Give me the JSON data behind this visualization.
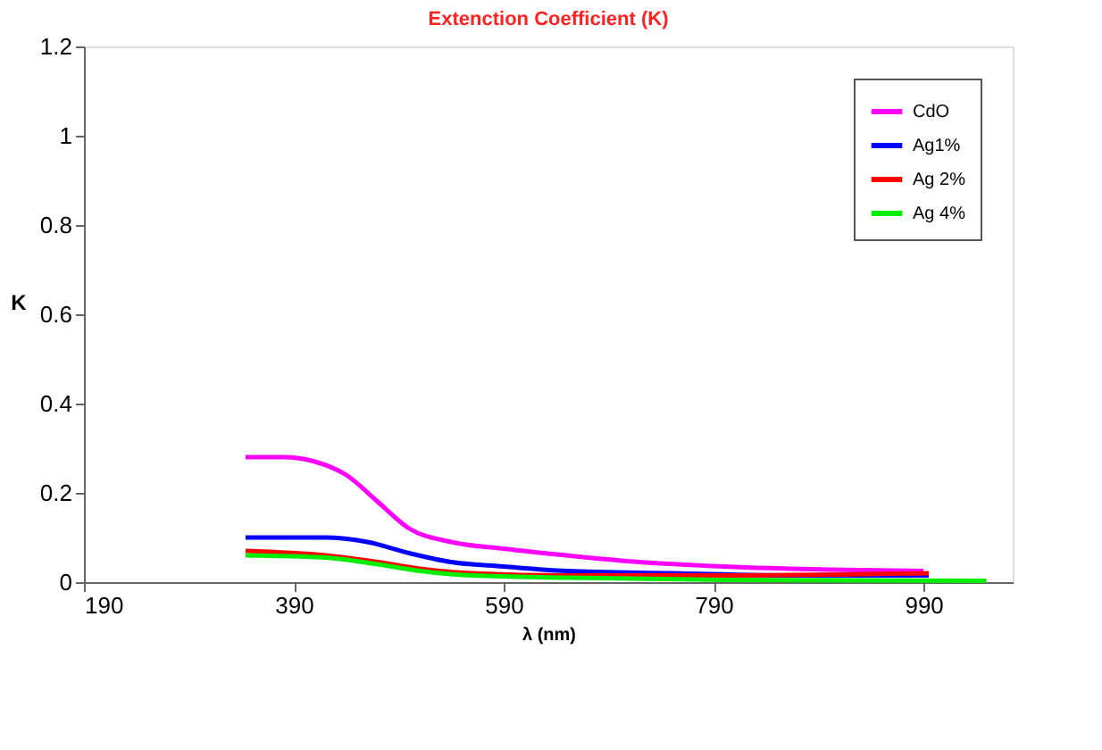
{
  "chart_data": {
    "type": "line",
    "title": "Extenction Coefficient (K)",
    "xlabel": "λ (nm)",
    "ylabel": "K",
    "xlim": [
      190,
      1075
    ],
    "xticks": [
      190,
      390,
      590,
      790,
      990
    ],
    "ylim": [
      0,
      1.2
    ],
    "yticks": [
      0,
      0.2,
      0.4,
      0.6,
      0.8,
      1,
      1.2
    ],
    "grid": false,
    "legend": "top right",
    "marker": "none",
    "line_style": "solid",
    "series": [
      {
        "name": "CdO",
        "color": "#ff00ff",
        "x": [
          344,
          380,
          410,
          440,
          470,
          500,
          540,
          590,
          650,
          720,
          800,
          900,
          990
        ],
        "values": [
          0.28,
          0.28,
          0.27,
          0.24,
          0.18,
          0.12,
          0.09,
          0.075,
          0.06,
          0.045,
          0.035,
          0.028,
          0.025
        ]
      },
      {
        "name": "Ag1%",
        "color": "#0000ff",
        "x": [
          344,
          420,
          460,
          500,
          540,
          590,
          650,
          750,
          870,
          995
        ],
        "values": [
          0.1,
          0.1,
          0.09,
          0.065,
          0.045,
          0.035,
          0.025,
          0.02,
          0.015,
          0.015
        ]
      },
      {
        "name": "Ag 2%",
        "color": "#ff0000",
        "x": [
          344,
          420,
          470,
          510,
          560,
          650,
          800,
          995
        ],
        "values": [
          0.07,
          0.06,
          0.045,
          0.03,
          0.02,
          0.015,
          0.015,
          0.02
        ]
      },
      {
        "name": "Ag 4%",
        "color": "#00ee00",
        "x": [
          344,
          420,
          470,
          510,
          560,
          650,
          800,
          1050
        ],
        "values": [
          0.06,
          0.055,
          0.04,
          0.025,
          0.015,
          0.01,
          0.005,
          0.003
        ]
      }
    ]
  }
}
